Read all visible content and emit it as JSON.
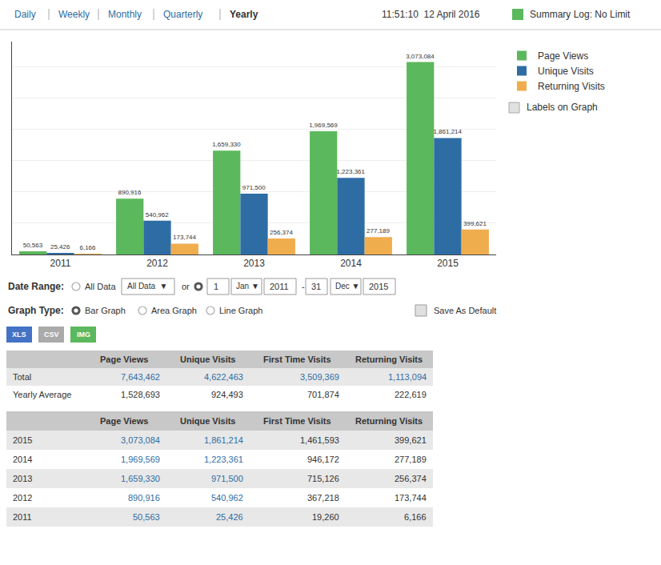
{
  "chart_data": {
    "type": "bar",
    "categories": [
      "2011",
      "2012",
      "2013",
      "2014",
      "2015"
    ],
    "series": [
      {
        "name": "Page Views",
        "color": "#5cb85c",
        "values": [
          50563,
          890916,
          1659330,
          1969569,
          3073084
        ],
        "value_labels": [
          "50,563",
          "890,916",
          "1,659,330",
          "1,969,569",
          "3,073,084"
        ]
      },
      {
        "name": "Unique Visits",
        "color": "#2e6da4",
        "values": [
          25426,
          540962,
          971500,
          1223361,
          1861214
        ],
        "value_labels": [
          "25,426",
          "540,962",
          "971,500",
          "1,223,361",
          "1,861,214"
        ]
      },
      {
        "name": "Returning Visits",
        "color": "#f0ad4e",
        "values": [
          6166,
          173744,
          256374,
          277189,
          399621
        ],
        "value_labels": [
          "6,166",
          "173,744",
          "256,374",
          "277,189",
          "399,621"
        ]
      }
    ],
    "ylim": [
      0,
      3400000
    ],
    "yticks": [
      0,
      500000,
      1000000,
      1500000,
      2000000,
      2500000,
      3000000
    ],
    "tick_labels": "x",
    "grid": true,
    "legend": "right",
    "data_labels": true,
    "annotations": [
      "Daily",
      "Weekly",
      "Monthly",
      "Quarterly",
      "Yearly",
      "11:51:10  12 April 2016",
      "Summary Log: No Limit",
      "Labels on Graph",
      "Date Range:",
      "All Data",
      "All Data  ▼",
      "or",
      "1",
      "Jan ▼",
      "2011",
      "-",
      "31",
      "Dec ▼",
      "2015",
      "Graph Type:",
      "Bar Graph",
      "Area Graph",
      "Line Graph",
      "Save As Default",
      "XLS",
      "CSV",
      "IMG",
      "Page Views",
      "Unique Visits",
      "First Time Visits",
      "Returning Visits",
      "Total",
      "7,643,462",
      "4,622,463",
      "3,509,369",
      "1,113,094",
      "Yearly Average",
      "1,528,693",
      "924,493",
      "701,874",
      "222,619",
      "Page Views",
      "Unique Visits",
      "First Time Visits",
      "Returning Visits",
      "2015",
      "3,073,084",
      "1,861,214",
      "1,461,593",
      "399,621",
      "2014",
      "1,969,569",
      "1,223,361",
      "946,172",
      "277,189",
      "2013",
      "1,659,330",
      "971,500",
      "715,126",
      "256,374",
      "2012",
      "890,916",
      "540,962",
      "367,218",
      "173,744",
      "2011",
      "50,563",
      "25,426",
      "19,260",
      "6,166"
    ]
  }
}
